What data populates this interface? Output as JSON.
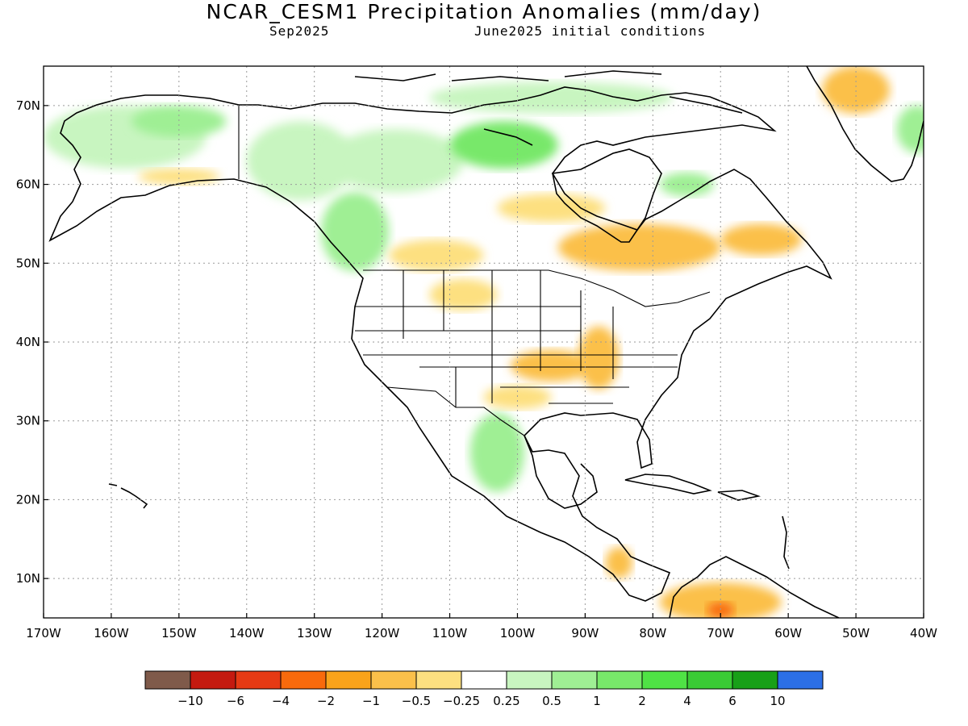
{
  "title": "NCAR_CESM1 Precipitation Anomalies (mm/day)",
  "subtitle_left": "Sep2025",
  "subtitle_right": "June2025 initial conditions",
  "map": {
    "lon_range": [
      -170,
      -40
    ],
    "lat_range": [
      5,
      75
    ],
    "grid": "dotted",
    "lat_labels": [
      "10N",
      "20N",
      "30N",
      "40N",
      "50N",
      "60N",
      "70N"
    ],
    "lat_values": [
      10,
      20,
      30,
      40,
      50,
      60,
      70
    ],
    "lon_labels": [
      "170W",
      "160W",
      "150W",
      "140W",
      "130W",
      "120W",
      "110W",
      "100W",
      "90W",
      "80W",
      "70W",
      "60W",
      "50W",
      "40W"
    ],
    "lon_values": [
      -170,
      -160,
      -150,
      -140,
      -130,
      -120,
      -110,
      -100,
      -90,
      -80,
      -70,
      -60,
      -50,
      -40
    ]
  },
  "colorbar": {
    "colors": [
      "#7f5a4a",
      "#c41a10",
      "#e63a14",
      "#f86a0c",
      "#f9a31a",
      "#fbc04a",
      "#fde080",
      "#ffffff",
      "#c8f5c0",
      "#9fef94",
      "#78e86a",
      "#4fe245",
      "#3acb35",
      "#18a018",
      "#2c6fe6"
    ],
    "labels": [
      "−10",
      "−6",
      "−4",
      "−2",
      "−1",
      "−0.5",
      "−0.25",
      "0.25",
      "0.5",
      "1",
      "2",
      "4",
      "6",
      "10"
    ]
  },
  "anomaly_regions": [
    {
      "name": "Alaska interior",
      "color": "#c8f5c0",
      "lon": -158,
      "lat": 66,
      "rx": 12,
      "ry": 4
    },
    {
      "name": "Alaska north",
      "color": "#9fef94",
      "lon": -150,
      "lat": 68,
      "rx": 7,
      "ry": 2
    },
    {
      "name": "Yukon",
      "color": "#c8f5c0",
      "lon": -132,
      "lat": 63,
      "rx": 8,
      "ry": 5
    },
    {
      "name": "Northwest Territories",
      "color": "#c8f5c0",
      "lon": -118,
      "lat": 63,
      "rx": 10,
      "ry": 4
    },
    {
      "name": "British Columbia",
      "color": "#9fef94",
      "lon": -124,
      "lat": 54,
      "rx": 5,
      "ry": 5
    },
    {
      "name": "Nunavut",
      "color": "#78e86a",
      "lon": -102,
      "lat": 65,
      "rx": 8,
      "ry": 3
    },
    {
      "name": "Canadian Archipelago",
      "color": "#c8f5c0",
      "lon": -95,
      "lat": 71,
      "rx": 18,
      "ry": 2
    },
    {
      "name": "Alaska south coast",
      "color": "#fde080",
      "lon": -150,
      "lat": 61,
      "rx": 6,
      "ry": 1
    },
    {
      "name": "Prairies",
      "color": "#fde080",
      "lon": -112,
      "lat": 51,
      "rx": 7,
      "ry": 2
    },
    {
      "name": "Hudson Bay south",
      "color": "#fde080",
      "lon": -95,
      "lat": 57,
      "rx": 8,
      "ry": 1.8
    },
    {
      "name": "Ontario Quebec",
      "color": "#fbc04a",
      "lon": -82,
      "lat": 52,
      "rx": 12,
      "ry": 3
    },
    {
      "name": "Labrador",
      "color": "#fbc04a",
      "lon": -64,
      "lat": 53,
      "rx": 6,
      "ry": 2
    },
    {
      "name": "Quebec north",
      "color": "#9fef94",
      "lon": -75,
      "lat": 60,
      "rx": 4,
      "ry": 1.5
    },
    {
      "name": "Montana",
      "color": "#fde080",
      "lon": -108,
      "lat": 46,
      "rx": 5,
      "ry": 2
    },
    {
      "name": "Central US",
      "color": "#fbc04a",
      "lon": -95,
      "lat": 37,
      "rx": 6,
      "ry": 2
    },
    {
      "name": "Mid-Mississippi",
      "color": "#fbc04a",
      "lon": -88,
      "lat": 38,
      "rx": 3,
      "ry": 4
    },
    {
      "name": "Mexico north",
      "color": "#9fef94",
      "lon": -103,
      "lat": 26,
      "rx": 4,
      "ry": 5
    },
    {
      "name": "Southern Plains",
      "color": "#fde080",
      "lon": -100,
      "lat": 33,
      "rx": 5,
      "ry": 1.5
    },
    {
      "name": "Central America",
      "color": "#fbc04a",
      "lon": -85,
      "lat": 12,
      "rx": 2,
      "ry": 2
    },
    {
      "name": "Northern South America",
      "color": "#fbc04a",
      "lon": -70,
      "lat": 7,
      "rx": 9,
      "ry": 2.5
    },
    {
      "name": "Colombia core",
      "color": "#f86a0c",
      "lon": -70,
      "lat": 6,
      "rx": 2,
      "ry": 1
    },
    {
      "name": "Greenland west",
      "color": "#fbc04a",
      "lon": -50,
      "lat": 72,
      "rx": 5,
      "ry": 3
    },
    {
      "name": "Greenland east",
      "color": "#9fef94",
      "lon": -41,
      "lat": 67,
      "rx": 3,
      "ry": 3
    }
  ]
}
